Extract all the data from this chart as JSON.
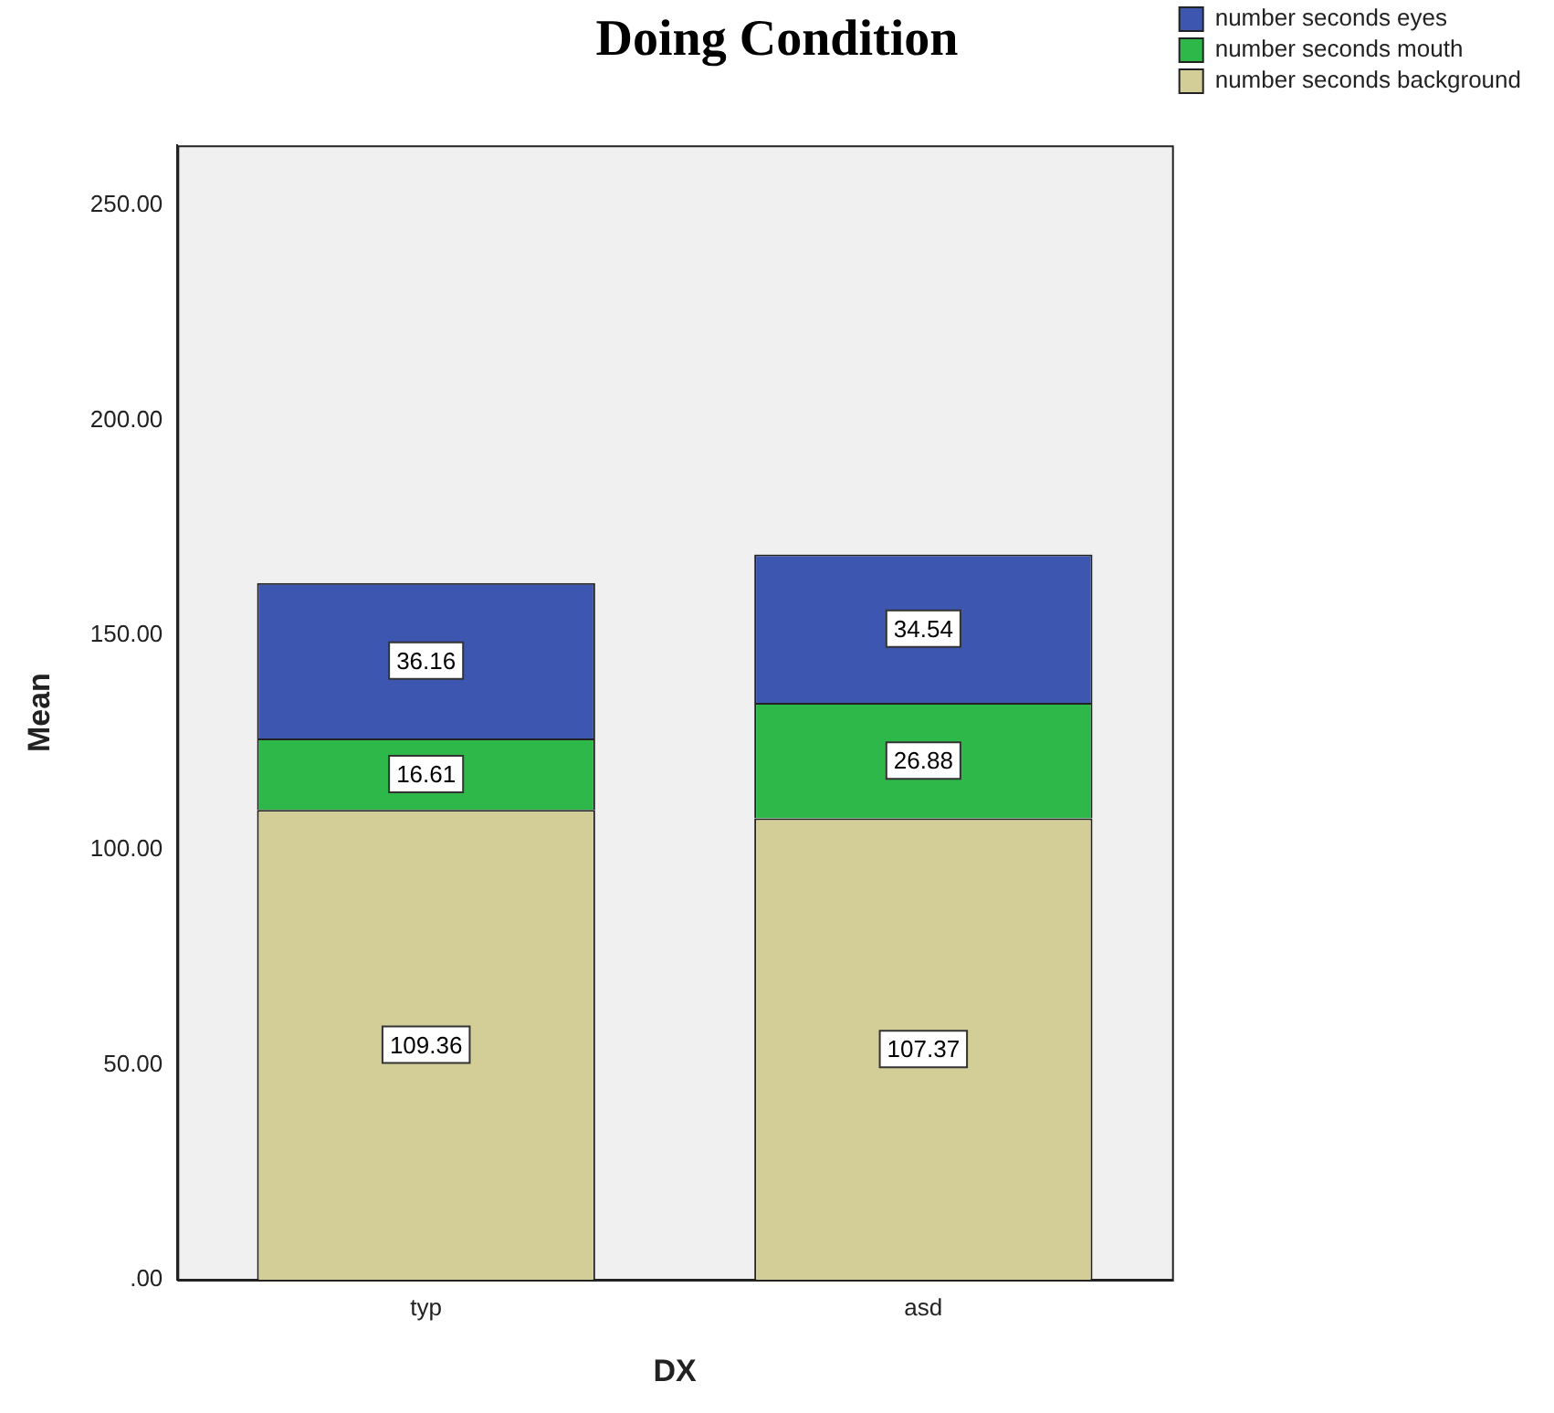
{
  "chart_data": {
    "type": "bar",
    "title": "Doing Condition",
    "xlabel": "DX",
    "ylabel": "Mean",
    "categories": [
      "typ",
      "asd"
    ],
    "stacked": true,
    "data_labels": true,
    "legend": "top right",
    "grid": false,
    "ylim": [
      0,
      264
    ],
    "yticks": [
      {
        "value": 0,
        "label": ".00"
      },
      {
        "value": 50,
        "label": "50.00"
      },
      {
        "value": 100,
        "label": "100.00"
      },
      {
        "value": 150,
        "label": "150.00"
      },
      {
        "value": 200,
        "label": "200.00"
      },
      {
        "value": 250,
        "label": "250.00"
      }
    ],
    "series": [
      {
        "name": "number seconds background",
        "color": "#d3ce97",
        "values": [
          109.36,
          107.37
        ]
      },
      {
        "name": "number seconds mouth",
        "color": "#2eb84a",
        "values": [
          16.61,
          26.88
        ]
      },
      {
        "name": "number seconds eyes",
        "color": "#3d56b0",
        "values": [
          36.16,
          34.54
        ]
      }
    ]
  }
}
